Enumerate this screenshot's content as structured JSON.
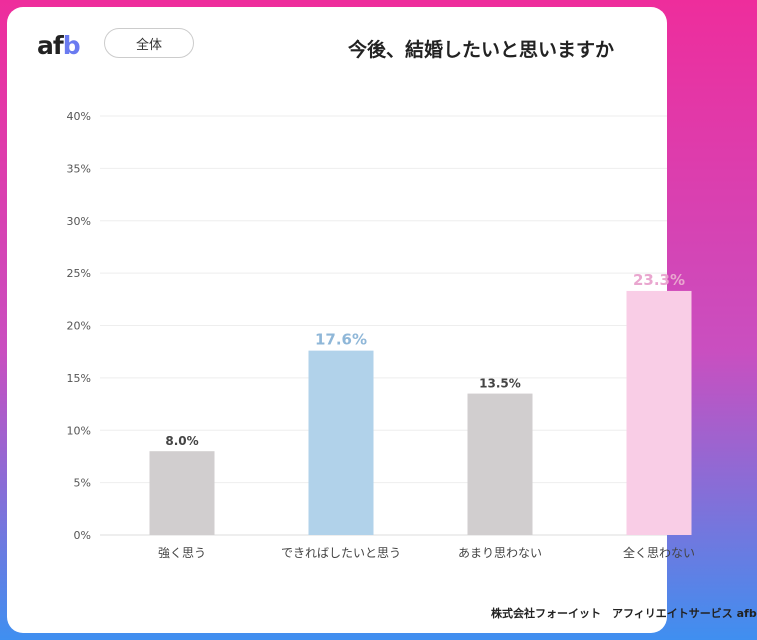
{
  "header": {
    "logo": "afb",
    "segment_label": "全体",
    "title": "今後、結婚したいと思いますか"
  },
  "footer": {
    "credit": "株式会社フォーイット　アフィリエイトサービス afb"
  },
  "chart_data": {
    "type": "bar",
    "title": "今後、結婚したいと思いますか",
    "categories": [
      "強く思う",
      "できればしたいと思う",
      "あまり思わない",
      "全く思わない"
    ],
    "values": [
      8.0,
      17.6,
      13.5,
      23.3
    ],
    "value_labels": [
      "8.0%",
      "17.6%",
      "13.5%",
      "23.3%"
    ],
    "colors": [
      "#d1cecf",
      "#b1d2ea",
      "#d1cecf",
      "#f9cde6"
    ],
    "label_colors": [
      "#444444",
      "#8fb7d8",
      "#444444",
      "#e9a6cf"
    ],
    "ylim": [
      0,
      40
    ],
    "yticks": [
      "0%",
      "5%",
      "10%",
      "15%",
      "20%",
      "25%",
      "30%",
      "35%",
      "40%"
    ],
    "grid": true,
    "xlabel": "",
    "ylabel": ""
  }
}
